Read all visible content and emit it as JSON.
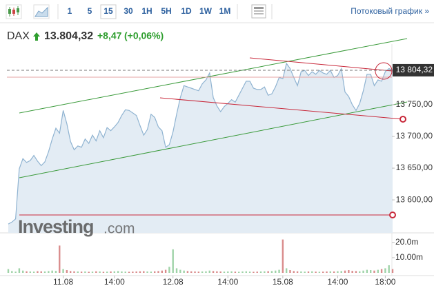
{
  "toolbar": {
    "intervals": [
      "1",
      "5",
      "15",
      "30",
      "1H",
      "5H",
      "1D",
      "1W",
      "1M"
    ],
    "active": "15",
    "streaming_link": "Потоковый график »"
  },
  "header": {
    "symbol": "DAX",
    "price": "13.804,32",
    "change": "+8,47",
    "change_pct": "(+0,06%)"
  },
  "watermark": {
    "brand": "Investing",
    "suffix": ".com"
  },
  "chart_data": {
    "type": "area",
    "color": "#8fb3d1",
    "fill": "#e3ecf4",
    "categories": [
      null,
      null,
      null,
      null,
      null,
      null,
      null,
      null,
      null,
      null,
      null,
      null,
      null,
      null,
      null,
      "11.08",
      null,
      null,
      null,
      null,
      null,
      null,
      null,
      null,
      null,
      null,
      null,
      null,
      null,
      "14:00",
      null,
      null,
      null,
      null,
      null,
      null,
      null,
      null,
      null,
      null,
      null,
      null,
      null,
      null,
      null,
      "12.08",
      null,
      null,
      null,
      null,
      null,
      null,
      null,
      null,
      null,
      null,
      null,
      null,
      null,
      null,
      "14:00",
      null,
      null,
      null,
      null,
      null,
      null,
      null,
      null,
      null,
      null,
      null,
      null,
      null,
      null,
      "15.08",
      null,
      null,
      null,
      null,
      null,
      null,
      null,
      null,
      null,
      null,
      null,
      null,
      null,
      null,
      "14:00",
      null,
      null,
      null,
      null,
      null,
      null,
      null,
      null,
      null,
      null,
      null,
      null,
      "18:00",
      null,
      null
    ],
    "values": [
      13562,
      13565,
      13570,
      13649,
      13665,
      13659,
      13662,
      13670,
      13661,
      13654,
      13660,
      13676,
      13696,
      13713,
      13705,
      13741,
      13720,
      13692,
      13679,
      13685,
      13683,
      13696,
      13689,
      13702,
      13693,
      13709,
      13698,
      13714,
      13709,
      13715,
      13722,
      13733,
      13742,
      13741,
      13737,
      13733,
      13717,
      13702,
      13711,
      13735,
      13730,
      13715,
      13709,
      13683,
      13687,
      13707,
      13735,
      13761,
      13780,
      13778,
      13776,
      13774,
      13772,
      13783,
      13789,
      13800,
      13761,
      13748,
      13739,
      13747,
      13752,
      13758,
      13754,
      13765,
      13776,
      13787,
      13787,
      13776,
      13774,
      13774,
      13778,
      13765,
      13767,
      13778,
      13793,
      13791,
      13815,
      13807,
      13793,
      13780,
      13802,
      13804,
      13796,
      13802,
      13798,
      13804,
      13800,
      13798,
      13804,
      13793,
      13796,
      13807,
      13770,
      13763,
      13750,
      13741,
      13752,
      13772,
      13798,
      13798,
      13780,
      13789,
      13787,
      13802,
      13807,
      13804.32
    ],
    "ylim": [
      13548,
      13839
    ],
    "yticks": [
      {
        "value": 13600,
        "label": "13 600,00"
      },
      {
        "value": 13650,
        "label": "13 650,00"
      },
      {
        "value": 13700,
        "label": "13 700,00"
      },
      {
        "value": 13750,
        "label": "13 750,00"
      }
    ],
    "last_price": {
      "value": 13804.32,
      "label": "13 804,32"
    },
    "volume": {
      "type": "bar",
      "up_color": "#9fd3a8",
      "down_color": "#d98c8c",
      "values": [
        2500000,
        1200000,
        800000,
        3000000,
        1500000,
        1000000,
        900000,
        800000,
        1100000,
        1000000,
        900000,
        1200000,
        1500000,
        1300000,
        18000000,
        2500000,
        1800000,
        1200000,
        1000000,
        900000,
        800000,
        900000,
        700000,
        800000,
        1000000,
        900000,
        700000,
        800000,
        900000,
        1000000,
        1200000,
        900000,
        800000,
        700000,
        800000,
        900000,
        1000000,
        1100000,
        900000,
        800000,
        1000000,
        1200000,
        1500000,
        2000000,
        4000000,
        15500000,
        3000000,
        2000000,
        1500000,
        1200000,
        1000000,
        900000,
        800000,
        900000,
        1000000,
        1500000,
        1200000,
        1000000,
        900000,
        800000,
        900000,
        1000000,
        800000,
        700000,
        900000,
        1000000,
        800000,
        700000,
        800000,
        900000,
        1000000,
        1100000,
        1200000,
        1500000,
        2000000,
        22000000,
        3000000,
        1800000,
        1200000,
        1000000,
        900000,
        800000,
        900000,
        1000000,
        800000,
        700000,
        800000,
        900000,
        1000000,
        900000,
        1100000,
        1200000,
        1500000,
        1800000,
        1300000,
        1200000,
        1000000,
        1500000,
        2000000,
        1800000,
        1500000,
        2000000,
        2500000,
        3000000,
        5000000,
        2500000
      ],
      "ylim": [
        0,
        25450000
      ],
      "yticks": [
        {
          "value": 10000000,
          "label": "10.00m"
        },
        {
          "value": 20000000,
          "label": "20.0m"
        }
      ]
    }
  }
}
